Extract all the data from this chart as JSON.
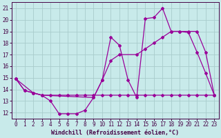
{
  "xlabel": "Windchill (Refroidissement éolien,°C)",
  "background_color": "#c8eaea",
  "grid_color": "#a8cccc",
  "line_color": "#990099",
  "xlim": [
    -0.5,
    23.5
  ],
  "ylim": [
    11.5,
    21.5
  ],
  "xticks": [
    0,
    1,
    2,
    3,
    4,
    5,
    6,
    7,
    8,
    9,
    10,
    11,
    12,
    13,
    14,
    15,
    16,
    17,
    18,
    19,
    20,
    21,
    22,
    23
  ],
  "yticks": [
    12,
    13,
    14,
    15,
    16,
    17,
    18,
    19,
    20,
    21
  ],
  "line1_x": [
    0,
    1,
    2,
    3,
    4,
    5,
    6,
    7,
    8,
    9,
    10,
    11,
    12,
    13,
    14,
    15,
    16,
    17,
    18,
    19,
    20,
    21,
    22,
    23
  ],
  "line1_y": [
    14.9,
    13.9,
    13.7,
    13.5,
    13.0,
    11.9,
    11.9,
    11.9,
    12.2,
    13.3,
    14.8,
    18.5,
    17.8,
    14.8,
    13.3,
    20.1,
    20.2,
    21.0,
    19.0,
    19.0,
    18.9,
    17.2,
    15.4,
    13.5
  ],
  "line2_x": [
    0,
    1,
    2,
    3,
    4,
    5,
    6,
    7,
    8,
    9,
    10,
    11,
    12,
    13,
    14,
    15,
    16,
    17,
    18,
    19,
    20,
    21,
    22,
    23
  ],
  "line2_y": [
    14.9,
    13.9,
    13.7,
    13.5,
    13.5,
    13.5,
    13.5,
    13.5,
    13.5,
    13.5,
    13.5,
    13.5,
    13.5,
    13.5,
    13.5,
    13.5,
    13.5,
    13.5,
    13.5,
    13.5,
    13.5,
    13.5,
    13.5,
    13.5
  ],
  "line3_x": [
    0,
    2,
    3,
    9,
    10,
    11,
    12,
    14,
    15,
    16,
    17,
    18,
    19,
    20,
    21,
    22,
    23
  ],
  "line3_y": [
    14.9,
    13.7,
    13.5,
    13.3,
    14.8,
    16.5,
    17.0,
    17.0,
    17.5,
    18.0,
    18.5,
    19.0,
    19.0,
    19.0,
    19.0,
    17.2,
    13.5
  ]
}
